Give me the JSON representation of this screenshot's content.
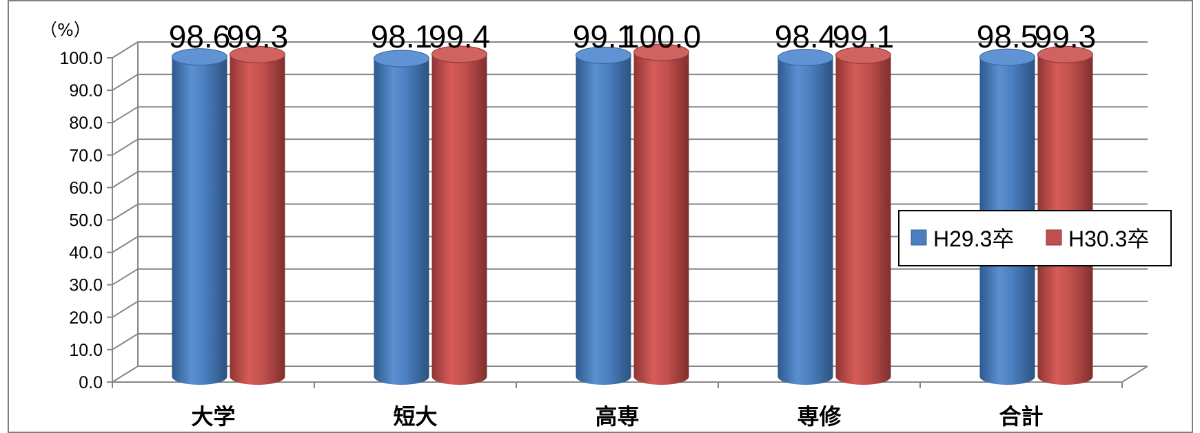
{
  "chart_data": {
    "type": "bar",
    "unit_label": "（%）",
    "categories": [
      "大学",
      "短大",
      "高専",
      "専修",
      "合計"
    ],
    "series": [
      {
        "name": "H29.3卒",
        "color": "#4a7ebf",
        "values": [
          98.6,
          98.1,
          99.1,
          98.4,
          98.5
        ]
      },
      {
        "name": "H30.3卒",
        "color": "#c0504d",
        "values": [
          99.3,
          99.4,
          100.0,
          99.1,
          99.3
        ]
      }
    ],
    "data_labels": [
      [
        "98.6",
        "98.1",
        "99.1",
        "98.4",
        "98.5"
      ],
      [
        "99.3",
        "99.4",
        "100.0",
        "99.1",
        "99.3"
      ]
    ],
    "y_ticks": [
      "0.0",
      "10.0",
      "20.0",
      "30.0",
      "40.0",
      "50.0",
      "60.0",
      "70.0",
      "80.0",
      "90.0",
      "100.0"
    ],
    "ylim": [
      0,
      100
    ],
    "grid": true,
    "legend_position": "right",
    "style": "3d-cylinder"
  }
}
